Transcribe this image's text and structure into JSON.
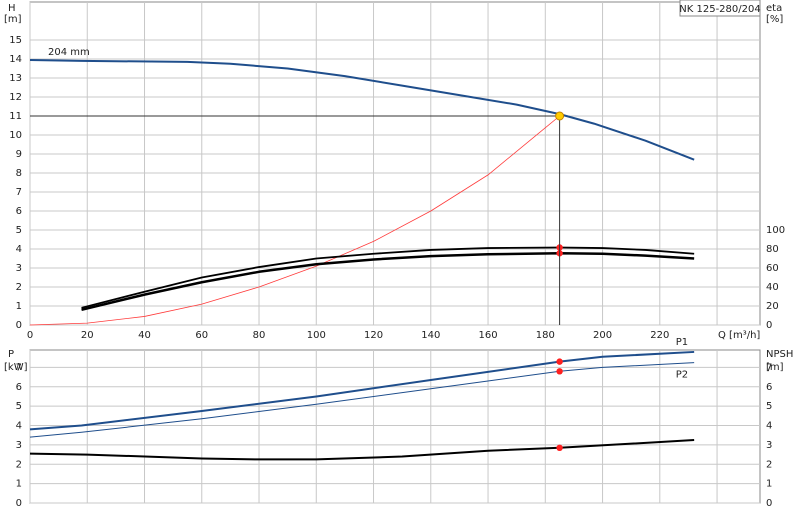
{
  "chart_data": [
    {
      "type": "line",
      "title": "NK 125-280/204",
      "annotation": "204 mm",
      "ylabel": "H",
      "yunit": "[m]",
      "y2label": "eta",
      "y2unit": "[%]",
      "xlabel": "Q [m³/h]",
      "xlim": [
        0,
        255
      ],
      "xticks": [
        0,
        20,
        40,
        60,
        80,
        100,
        120,
        140,
        160,
        180,
        200,
        220
      ],
      "xgrid": [
        0,
        20,
        40,
        60,
        80,
        100,
        120,
        140,
        160,
        180,
        200,
        220,
        240
      ],
      "ylim": [
        0,
        17
      ],
      "yticks": [
        0,
        1,
        2,
        3,
        4,
        5,
        6,
        7,
        8,
        9,
        10,
        11,
        12,
        13,
        14,
        15
      ],
      "y2lim": [
        0,
        340
      ],
      "y2ticks": [
        0,
        20,
        40,
        60,
        80,
        100
      ],
      "grid": true,
      "series": [
        {
          "color": "#1f4e8c",
          "width": 2,
          "x": [
            0,
            18,
            55,
            70,
            90,
            110,
            130,
            150,
            170,
            185,
            197,
            215,
            232
          ],
          "values": [
            13.95,
            13.9,
            13.85,
            13.75,
            13.5,
            13.1,
            12.6,
            12.1,
            11.6,
            11.1,
            10.6,
            9.7,
            8.7
          ]
        },
        {
          "color": "#ff3b3b",
          "width": 0.8,
          "x": [
            0,
            20,
            40,
            60,
            80,
            100,
            120,
            140,
            160,
            185
          ],
          "values": [
            0,
            0.1,
            0.45,
            1.1,
            2,
            3.1,
            4.4,
            6,
            7.9,
            11
          ]
        },
        {
          "color": "#000000",
          "width": 1.8,
          "axis": "y2",
          "x": [
            18,
            40,
            60,
            80,
            100,
            120,
            140,
            160,
            185,
            200,
            215,
            232
          ],
          "values": [
            18,
            35,
            50,
            61,
            70,
            75,
            79,
            81,
            81.6,
            81,
            79,
            75
          ]
        },
        {
          "color": "#000000",
          "width": 2.5,
          "axis": "y2",
          "x": [
            18,
            40,
            60,
            80,
            100,
            120,
            140,
            160,
            185,
            200,
            215,
            232
          ],
          "values": [
            16,
            32,
            45,
            56,
            64,
            69,
            72.5,
            74.5,
            75.5,
            75,
            73,
            70
          ]
        }
      ],
      "points": [
        {
          "x": 185,
          "y": 81.6,
          "axis": "y2",
          "color": "#ff2020"
        },
        {
          "x": 185,
          "y": 75.5,
          "axis": "y2",
          "color": "#ff2020"
        },
        {
          "x": 185,
          "y": 11,
          "color": "#ffcc00",
          "duty": true
        }
      ]
    },
    {
      "type": "line",
      "ylabel": "P",
      "yunit": "[kW]",
      "y2label": "NPSH",
      "y2unit": "[m]",
      "xlim": [
        0,
        255
      ],
      "xgrid": [
        0,
        20,
        40,
        60,
        80,
        100,
        120,
        140,
        160,
        180,
        200,
        220,
        240
      ],
      "ylim": [
        0,
        7.9
      ],
      "yticks": [
        0,
        1,
        2,
        3,
        4,
        5,
        6,
        7
      ],
      "y2lim": [
        0,
        7.9
      ],
      "y2ticks": [
        0,
        1,
        2,
        3,
        4,
        5,
        6,
        7
      ],
      "grid": true,
      "series": [
        {
          "name": "P1",
          "color": "#1f4e8c",
          "width": 2,
          "x": [
            0,
            18,
            60,
            100,
            140,
            185,
            200,
            232
          ],
          "values": [
            3.8,
            4.0,
            4.75,
            5.5,
            6.35,
            7.3,
            7.55,
            7.8
          ]
        },
        {
          "name": "P2",
          "color": "#1f4e8c",
          "width": 1,
          "x": [
            0,
            18,
            60,
            100,
            140,
            185,
            200,
            232
          ],
          "values": [
            3.4,
            3.65,
            4.35,
            5.1,
            5.9,
            6.8,
            7.0,
            7.25
          ]
        },
        {
          "color": "#000000",
          "width": 2,
          "axis": "y2",
          "x": [
            0,
            20,
            60,
            80,
            100,
            130,
            160,
            185,
            232
          ],
          "values": [
            2.55,
            2.5,
            2.3,
            2.25,
            2.25,
            2.4,
            2.7,
            2.85,
            3.25
          ]
        }
      ],
      "points": [
        {
          "x": 185,
          "y": 7.3,
          "color": "#ff2020"
        },
        {
          "x": 185,
          "y": 6.8,
          "color": "#ff2020"
        },
        {
          "x": 185,
          "y": 2.85,
          "axis": "y2",
          "color": "#ff2020"
        }
      ]
    }
  ]
}
